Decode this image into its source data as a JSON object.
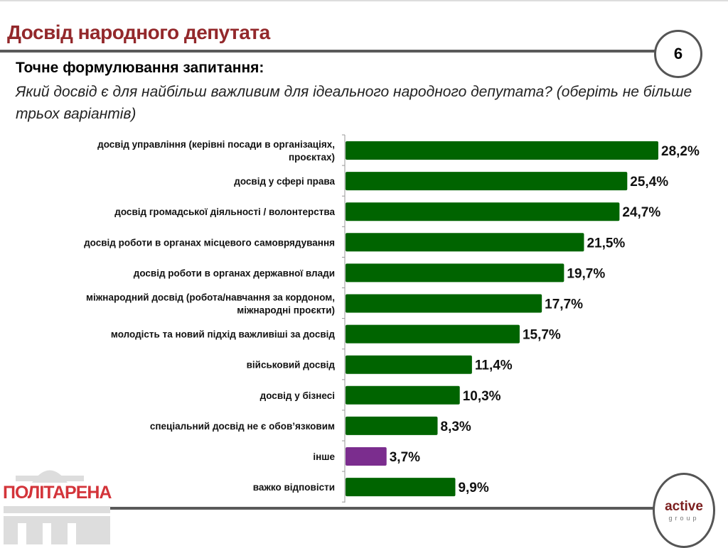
{
  "header": {
    "title": "Досвід народного депутата",
    "page_number": "6"
  },
  "question": {
    "heading": "Точне формулювання запитання:",
    "text": "Який досвід є для найбільш важливим для ідеального народного депутата? (оберіть не більше трьох варіантів)"
  },
  "logos": {
    "left": "ПОЛІТАРЕНА",
    "right_main": "active",
    "right_sub": "group"
  },
  "chart_data": {
    "type": "bar",
    "orientation": "horizontal",
    "categories": [
      "досвід управління (керівні посади в організаціях, проєктах)",
      "досвід у сфері права",
      "досвід громадської діяльності / волонтерства",
      "досвід роботи в органах місцевого самоврядування",
      "досвід роботи в органах державної влади",
      "міжнародний досвід (робота/навчання за кордоном, міжнародні проєкти)",
      "молодість та новий підхід важливіші за досвід",
      "військовий досвід",
      "досвід у бізнесі",
      "спеціальний досвід не є обов’язковим",
      "інше",
      "важко відповісти"
    ],
    "values": [
      28.2,
      25.4,
      24.7,
      21.5,
      19.7,
      17.7,
      15.7,
      11.4,
      10.3,
      8.3,
      3.7,
      9.9
    ],
    "labels": [
      "28,2%",
      "25,4%",
      "24,7%",
      "21,5%",
      "19,7%",
      "17,7%",
      "15,7%",
      "11,4%",
      "10,3%",
      "8,3%",
      "3,7%",
      "9,9%"
    ],
    "colors": [
      "#006400",
      "#006400",
      "#006400",
      "#006400",
      "#006400",
      "#006400",
      "#006400",
      "#006400",
      "#006400",
      "#006400",
      "#7b2d8e",
      "#006400"
    ],
    "grid": false,
    "xlim": [
      0,
      30
    ]
  }
}
